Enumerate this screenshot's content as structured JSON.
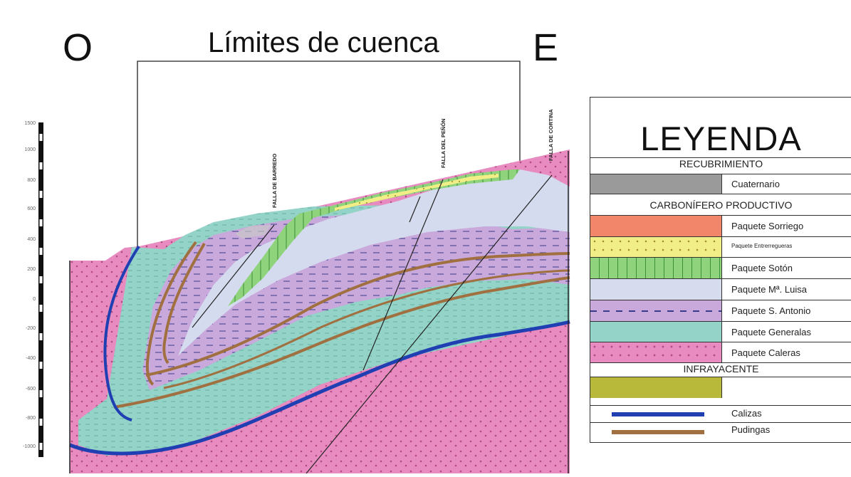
{
  "header": {
    "west": "O",
    "title": "Límites de cuenca",
    "east": "E"
  },
  "scale": {
    "labels": [
      "1500",
      "1000",
      "800",
      "600",
      "400",
      "200",
      "0",
      "-200",
      "-400",
      "-600",
      "-800",
      "-1000"
    ]
  },
  "faults": {
    "barredo": "FALLA DE BARREDO",
    "penon": "FALLA DEL PEÑÓN",
    "cortina": "FALLA DE CORTINA"
  },
  "legend": {
    "title": "LEYENDA",
    "sections": {
      "recubrimiento": "RECUBRIMIENTO",
      "carbonifero": "CARBONÍFERO PRODUCTIVO",
      "infrayacente": "INFRAYACENTE"
    },
    "items": [
      {
        "label": "Cuaternario",
        "color": "#9a9a9a"
      },
      {
        "label": "Paquete Sorriego",
        "color": "#f2866a"
      },
      {
        "label": "Paquete Entrerregueras",
        "color": "#f2ef8a"
      },
      {
        "label": "Paquete Sotón",
        "color": "#8fd27c"
      },
      {
        "label": "Paquete Mª. Luisa",
        "color": "#d6dcee"
      },
      {
        "label": "Paquete S. Antonio",
        "color": "#c8acd6"
      },
      {
        "label": "Paquete Generalas",
        "color": "#8fcfc4"
      },
      {
        "label": "Paquete Caleras",
        "color": "#e77fb6"
      }
    ],
    "infra_color": "#b8b83a",
    "lines": [
      {
        "label": "Calizas",
        "color": "#1f3fb3"
      },
      {
        "label": "Pudingas",
        "color": "#a07040"
      }
    ]
  }
}
